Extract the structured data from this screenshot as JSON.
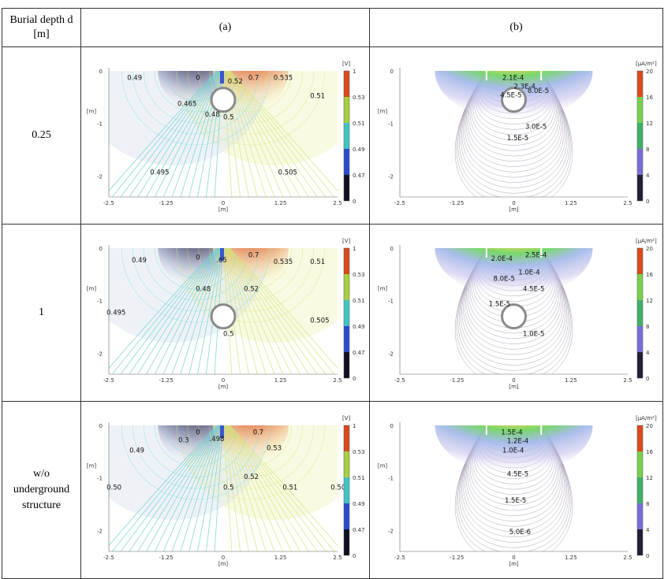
{
  "header": {
    "col0": "Burial depth d [m]",
    "col1": "(a)",
    "col2": "(b)"
  },
  "rows": [
    {
      "label": "0.25",
      "depth": 0.25,
      "a": {
        "labels": [
          {
            "t": "0.49",
            "x": -2.1,
            "y": -0.05
          },
          {
            "t": "0",
            "x": -0.6,
            "y": -0.05
          },
          {
            "t": "0.52",
            "x": 0.1,
            "y": -0.12
          },
          {
            "t": "0.7",
            "x": 0.55,
            "y": -0.05
          },
          {
            "t": "0.535",
            "x": 1.1,
            "y": -0.05
          },
          {
            "t": "0.465",
            "x": -1.0,
            "y": -0.55
          },
          {
            "t": "0.51",
            "x": 1.9,
            "y": -0.4
          },
          {
            "t": "0.48",
            "x": -0.4,
            "y": -0.75
          },
          {
            "t": "0.5",
            "x": 0.0,
            "y": -0.8
          },
          {
            "t": "0.495",
            "x": -1.6,
            "y": -1.85
          },
          {
            "t": "0.505",
            "x": 1.2,
            "y": -1.85
          }
        ]
      },
      "b": {
        "labels": [
          {
            "t": "2.1E-4",
            "x": -0.25,
            "y": -0.05
          },
          {
            "t": "2.3E-4",
            "x": 0.0,
            "y": -0.22
          },
          {
            "t": "8.0E-5",
            "x": 0.3,
            "y": -0.3
          },
          {
            "t": "4.5E-5",
            "x": -0.3,
            "y": -0.38
          },
          {
            "t": "3.0E-5",
            "x": 0.25,
            "y": -0.98
          },
          {
            "t": "1.5E-5",
            "x": -0.15,
            "y": -1.2
          }
        ]
      }
    },
    {
      "label": "1",
      "depth": 1,
      "a": {
        "labels": [
          {
            "t": "0.49",
            "x": -2.0,
            "y": -0.15
          },
          {
            "t": "0",
            "x": -0.6,
            "y": -0.1
          },
          {
            "t": ".65",
            "x": -0.15,
            "y": -0.15
          },
          {
            "t": "0.7",
            "x": 0.55,
            "y": -0.05
          },
          {
            "t": "0.535",
            "x": 1.1,
            "y": -0.18
          },
          {
            "t": "0.51",
            "x": 1.9,
            "y": -0.18
          },
          {
            "t": "0.48",
            "x": -0.6,
            "y": -0.7
          },
          {
            "t": "0.52",
            "x": 0.45,
            "y": -0.7
          },
          {
            "t": "0.495",
            "x": -2.55,
            "y": -1.15
          },
          {
            "t": "0.505",
            "x": 1.9,
            "y": -1.3
          },
          {
            "t": "0.5",
            "x": 0.0,
            "y": -1.55
          }
        ]
      },
      "b": {
        "labels": [
          {
            "t": "2.5E-4",
            "x": 0.25,
            "y": -0.05
          },
          {
            "t": "2.0E-4",
            "x": -0.5,
            "y": -0.12
          },
          {
            "t": "1.0E-4",
            "x": 0.1,
            "y": -0.38
          },
          {
            "t": "8.0E-5",
            "x": -0.45,
            "y": -0.5
          },
          {
            "t": "4.5E-5",
            "x": 0.2,
            "y": -0.7
          },
          {
            "t": "1.5E-5",
            "x": -0.55,
            "y": -0.98
          },
          {
            "t": "1.0E-5",
            "x": 0.2,
            "y": -1.55
          }
        ]
      }
    },
    {
      "label": "w/o underground structure",
      "depth": null,
      "a": {
        "labels": [
          {
            "t": "0",
            "x": -0.6,
            "y": -0.05
          },
          {
            "t": "0.3",
            "x": -0.98,
            "y": -0.2
          },
          {
            "t": ".498",
            "x": -0.3,
            "y": -0.18
          },
          {
            "t": "0.7",
            "x": 0.65,
            "y": -0.05
          },
          {
            "t": "0.53",
            "x": 0.95,
            "y": -0.35
          },
          {
            "t": "0.49",
            "x": -2.05,
            "y": -0.4
          },
          {
            "t": "0.52",
            "x": 0.45,
            "y": -0.9
          },
          {
            "t": "0.50",
            "x": -2.55,
            "y": -1.1
          },
          {
            "t": "0.5",
            "x": 0.0,
            "y": -1.1
          },
          {
            "t": "0.51",
            "x": 1.3,
            "y": -1.1
          },
          {
            "t": "0.50",
            "x": 2.35,
            "y": -1.1
          }
        ]
      },
      "b": {
        "labels": [
          {
            "t": "1.5E-4",
            "x": -0.28,
            "y": -0.05
          },
          {
            "t": "1.2E-4",
            "x": -0.15,
            "y": -0.22
          },
          {
            "t": "1.0E-4",
            "x": -0.25,
            "y": -0.4
          },
          {
            "t": "4.5E-5",
            "x": -0.15,
            "y": -0.85
          },
          {
            "t": "1.5E-5",
            "x": -0.2,
            "y": -1.35
          },
          {
            "t": "5.0E-6",
            "x": -0.1,
            "y": -1.95
          }
        ]
      }
    }
  ],
  "axes": {
    "xticks": [
      "-2.5",
      "-1.25",
      "0",
      "1.25",
      "2.5"
    ],
    "yticks": [
      "0",
      "-1",
      "-2"
    ],
    "unit": "[m]"
  },
  "colorbar_a": {
    "unit": "[V]",
    "ticks": [
      "1",
      "0.53",
      "0.51",
      "0.49",
      "0.47",
      "0"
    ]
  },
  "colorbar_b": {
    "unit": "[μA/m²]",
    "ticks": [
      "20",
      "16",
      "12",
      "8",
      "4",
      "0"
    ]
  },
  "colors": {
    "red": "#d94a1c",
    "dark": "#1a1a30",
    "cyan": "#40c4c4",
    "lime": "#b8d840"
  }
}
